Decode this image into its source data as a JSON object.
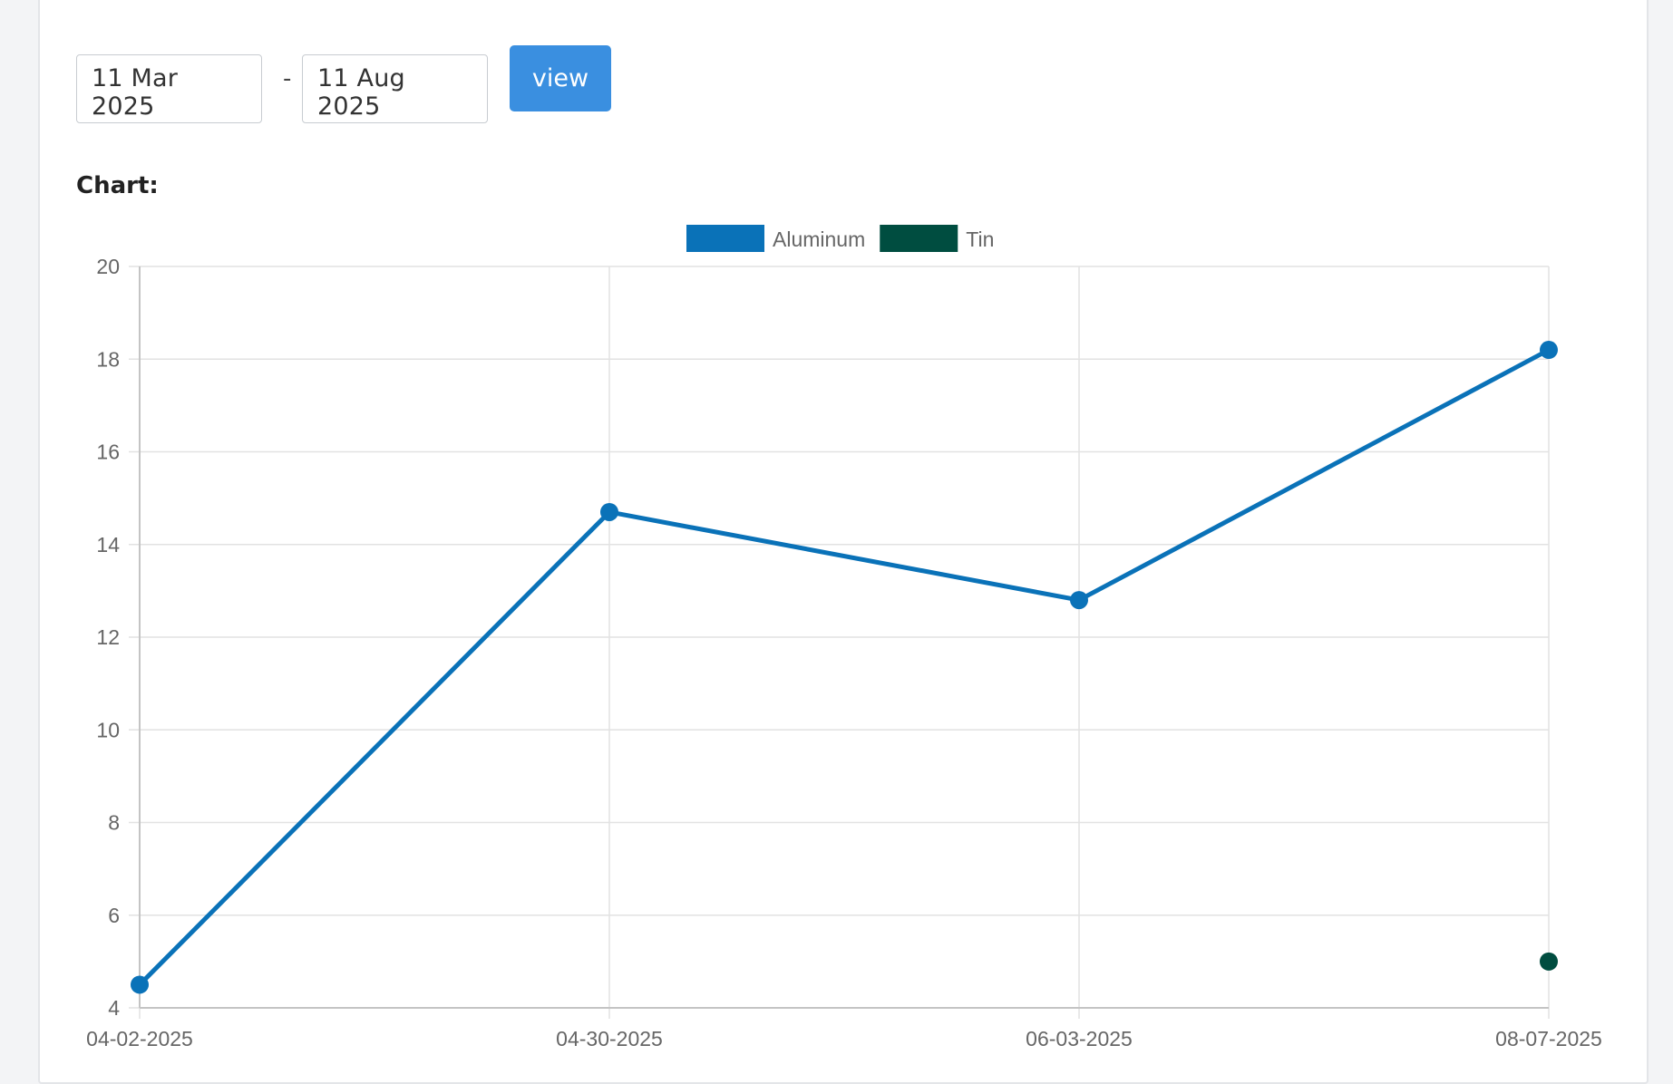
{
  "controls": {
    "start_date": "11 Mar 2025",
    "separator": "-",
    "end_date": "11 Aug 2025",
    "view_label": "view"
  },
  "chart_heading": "Chart:",
  "colors": {
    "accent_button": "#3a8fe0",
    "aluminum": "#0a72b8",
    "tin": "#004d40",
    "grid": "#e2e2e2"
  },
  "chart_data": {
    "type": "line",
    "x": [
      "04-02-2025",
      "04-30-2025",
      "06-03-2025",
      "08-07-2025"
    ],
    "series": [
      {
        "name": "Aluminum",
        "values": [
          4.5,
          14.7,
          12.8,
          18.2
        ]
      },
      {
        "name": "Tin",
        "values": [
          null,
          null,
          null,
          5.0
        ]
      }
    ],
    "ylim": [
      4,
      20
    ],
    "yticks": [
      4,
      6,
      8,
      10,
      12,
      14,
      16,
      18,
      20
    ],
    "grid": true,
    "legend_position": "top-center"
  }
}
